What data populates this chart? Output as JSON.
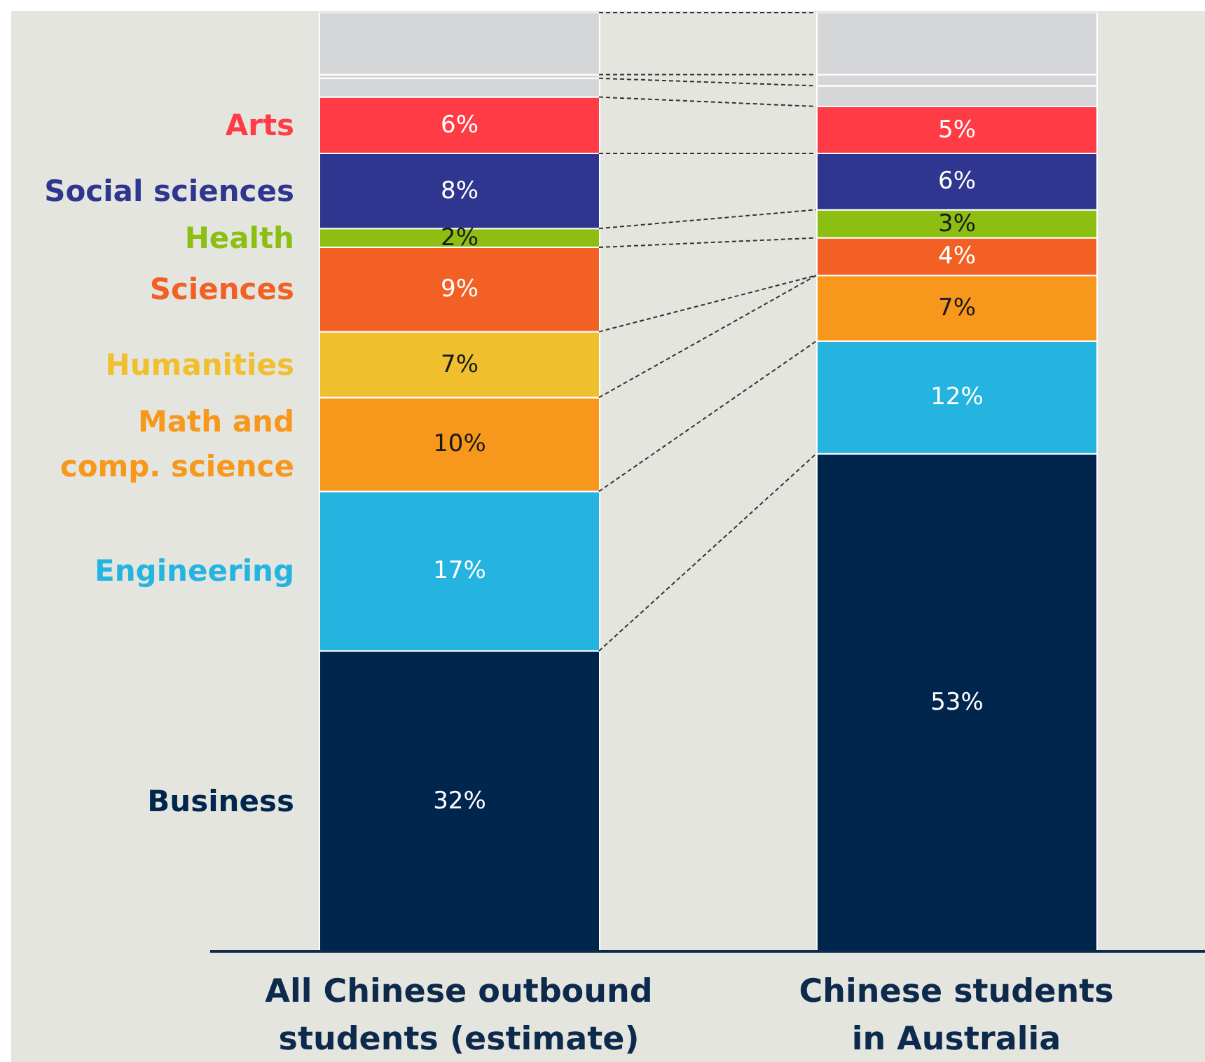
{
  "chart_data": {
    "type": "bar",
    "stacked": true,
    "categories": [
      "All Chinese outbound students (estimate)",
      "Chinese students in Australia"
    ],
    "series": [
      {
        "name": "Business",
        "color": "#00264d",
        "values": [
          32,
          53
        ],
        "value_labels": [
          "32%",
          "53%"
        ]
      },
      {
        "name": "Engineering",
        "color": "#25b4e0",
        "values": [
          17,
          12
        ],
        "value_labels": [
          "17%",
          "12%"
        ]
      },
      {
        "name": "Math and comp. science",
        "color": "#f7981d",
        "values": [
          10,
          7
        ],
        "value_labels": [
          "10%",
          "7%"
        ]
      },
      {
        "name": "Humanities",
        "color": "#f0bf2e",
        "values": [
          7,
          0
        ],
        "value_labels": [
          "7%",
          null
        ]
      },
      {
        "name": "Sciences",
        "color": "#f26024",
        "values": [
          9,
          4
        ],
        "value_labels": [
          "9%",
          "4%"
        ]
      },
      {
        "name": "Health",
        "color": "#8cbf11",
        "values": [
          2,
          3
        ],
        "value_labels": [
          "2%",
          "3%"
        ]
      },
      {
        "name": "Social sciences",
        "color": "#2e368f",
        "values": [
          8,
          6
        ],
        "value_labels": [
          "8%",
          "6%"
        ]
      },
      {
        "name": "Arts",
        "color": "#ff3b45",
        "values": [
          6,
          5
        ],
        "value_labels": [
          "6%",
          "5%"
        ]
      },
      {
        "color": "#d5d6d8",
        "values": [
          2,
          2.2
        ]
      },
      {
        "color": "#d5d6d8",
        "values": [
          0.4,
          1.2
        ]
      },
      {
        "color": "#d5d6d8",
        "values": [
          6.6,
          6.6
        ]
      }
    ]
  }
}
